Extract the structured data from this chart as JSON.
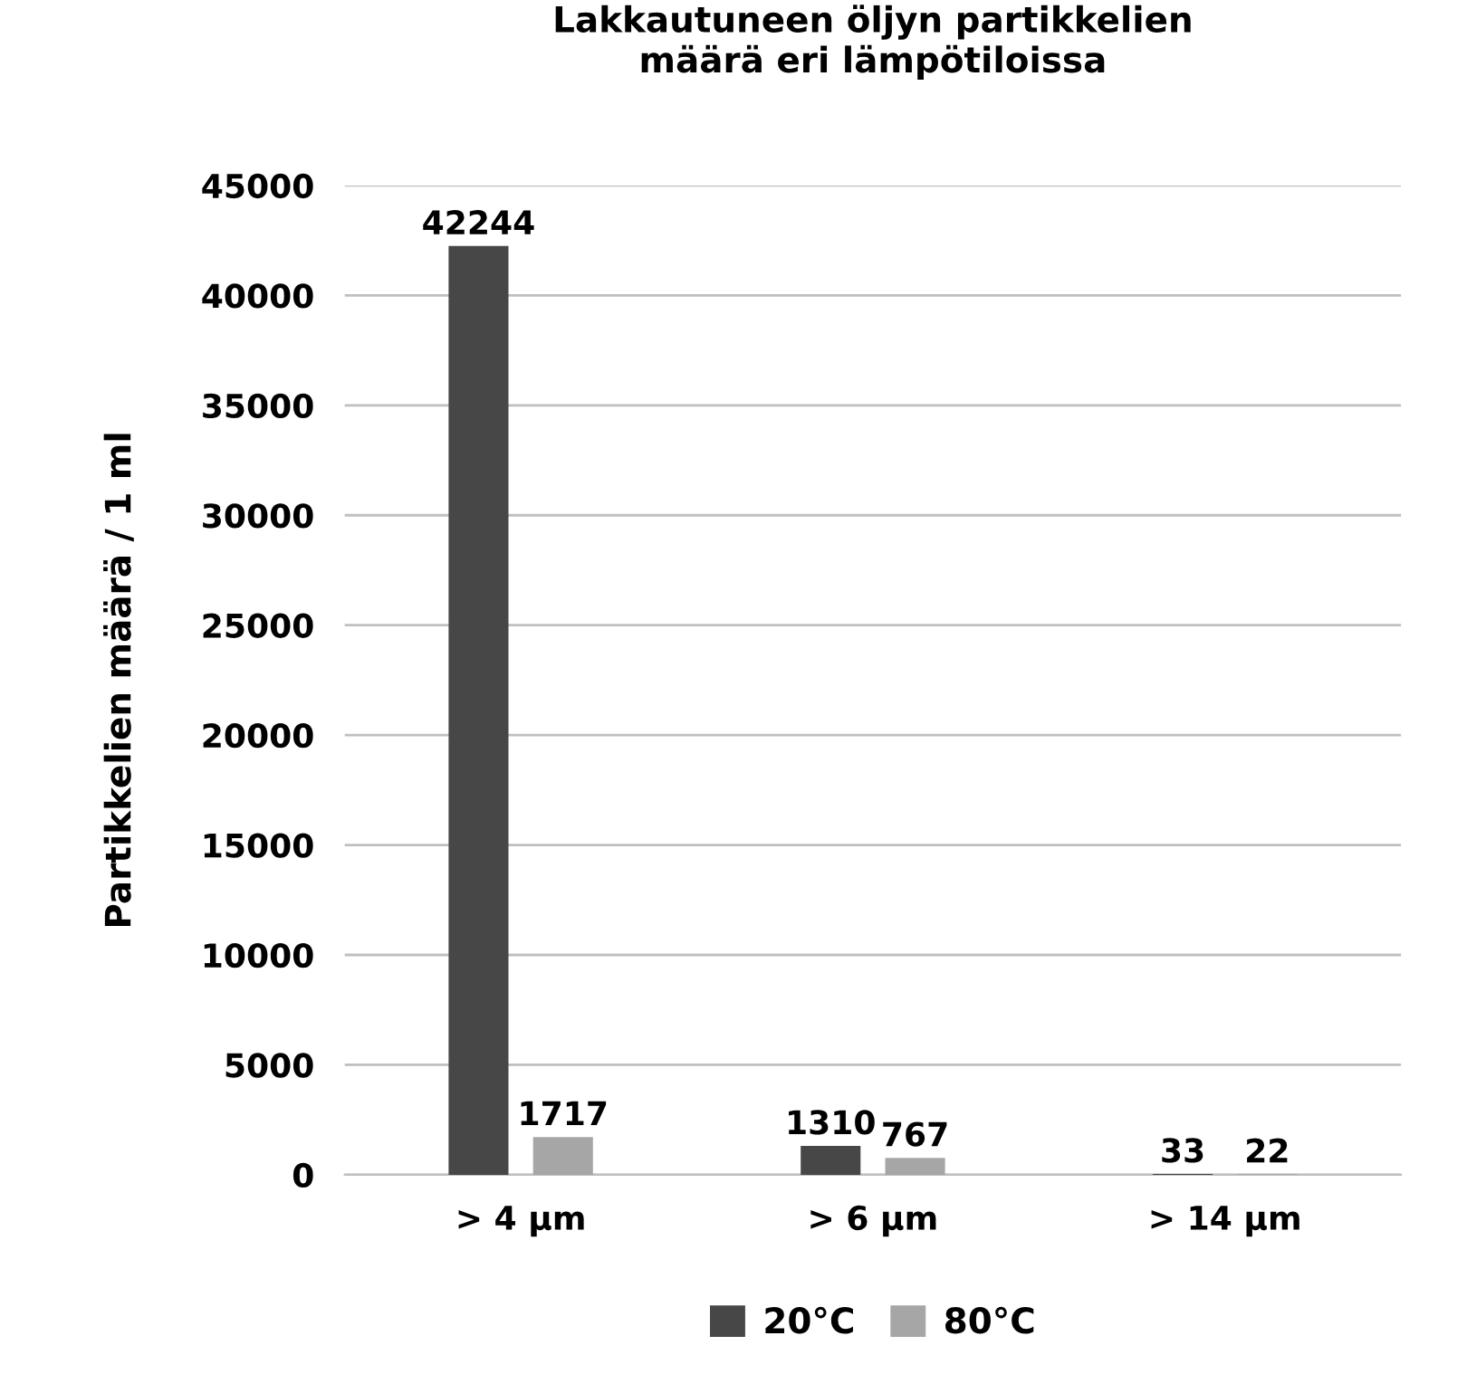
{
  "chart_data": {
    "type": "bar",
    "title": "Lakkautuneen öljyn partikkelien\nmäärä eri lämpötiloissa",
    "ylabel": "Partikkelien määrä / 1 ml",
    "categories": [
      "> 4 µm",
      "> 6 µm",
      "> 14 µm"
    ],
    "series": [
      {
        "name": "20°C",
        "color": "#474747",
        "values": [
          42244,
          1310,
          33
        ]
      },
      {
        "name": "80°C",
        "color": "#a6a6a6",
        "values": [
          1717,
          767,
          22
        ]
      }
    ],
    "ylim": [
      0,
      45000
    ],
    "yticks": [
      0,
      5000,
      10000,
      15000,
      20000,
      25000,
      30000,
      35000,
      40000,
      45000
    ],
    "grid": "y",
    "legend": "bottom",
    "data_labels": true
  }
}
